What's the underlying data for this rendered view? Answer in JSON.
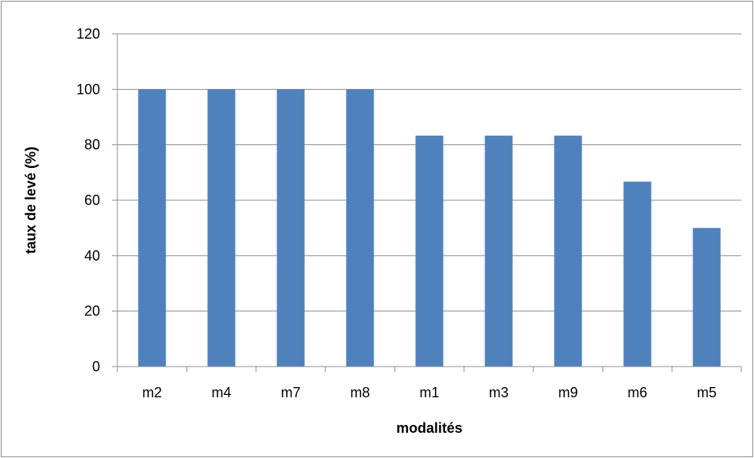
{
  "chart_data": {
    "type": "bar",
    "title": "",
    "xlabel": "modalités",
    "ylabel": "taux de levé (%)",
    "categories": [
      "m2",
      "m4",
      "m7",
      "m8",
      "m1",
      "m3",
      "m9",
      "m6",
      "m5"
    ],
    "values": [
      100,
      100,
      100,
      100,
      83.3,
      83.3,
      83.3,
      66.7,
      50
    ],
    "ylim": [
      0,
      120
    ],
    "yticks": [
      "0",
      "20",
      "40",
      "60",
      "80",
      "100",
      "120"
    ],
    "grid": true,
    "legend": "none",
    "colors": {
      "bar": "#4f81bd",
      "grid": "#8c8c8c",
      "axis": "#8c8c8c"
    }
  }
}
